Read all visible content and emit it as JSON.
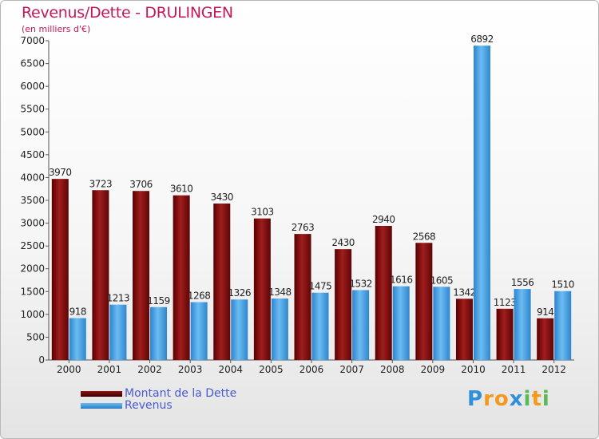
{
  "chart_data": {
    "type": "bar",
    "title": "Revenus/Dette - DRULINGEN",
    "subtitle": "(en milliers d'€)",
    "categories": [
      "2000",
      "2001",
      "2002",
      "2003",
      "2004",
      "2005",
      "2006",
      "2007",
      "2008",
      "2009",
      "2010",
      "2011",
      "2012"
    ],
    "series": [
      {
        "name": "Montant de la Dette",
        "color": "#8b1414",
        "values": [
          3970,
          3723,
          3706,
          3610,
          3430,
          3103,
          2763,
          2430,
          2940,
          2568,
          1342,
          1123,
          914
        ]
      },
      {
        "name": "Revenus",
        "color": "#3f9be0",
        "values": [
          918,
          1213,
          1159,
          1268,
          1326,
          1348,
          1475,
          1532,
          1616,
          1605,
          6892,
          1556,
          1510
        ]
      }
    ],
    "ylim": [
      0,
      7000
    ],
    "yticks": [
      0,
      500,
      1000,
      1500,
      2000,
      2500,
      3000,
      3500,
      4000,
      4500,
      5000,
      5500,
      6000,
      6500,
      7000
    ],
    "grid": false,
    "legend_position": "bottom-left"
  },
  "logo": {
    "text": "Proxiti",
    "letters": [
      "P",
      "r",
      "o",
      "x",
      "i",
      "t",
      "i"
    ],
    "colors": [
      "#2f8fd8",
      "#f39a1e",
      "#f39a1e",
      "#2f8fd8",
      "#5cb85c",
      "#f39a1e",
      "#5cb85c"
    ]
  }
}
